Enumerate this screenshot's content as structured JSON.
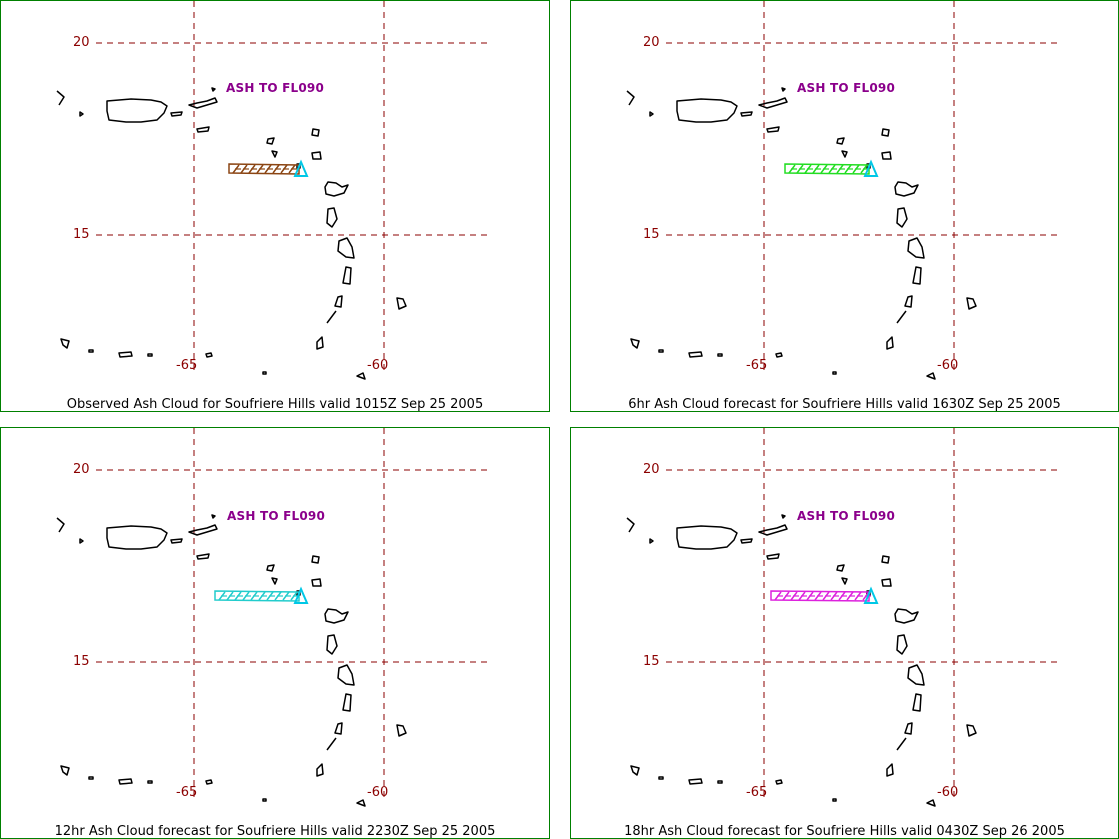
{
  "colors": {
    "border": "#008000",
    "grid": "#8b0000",
    "coast": "#000000",
    "ash_label": "#8b008b",
    "vent": "#00c8e6"
  },
  "icons": {
    "vent": "triangle-icon",
    "ash_cloud": "hatched-polygon"
  },
  "panels": [
    {
      "lat_labels": [
        "20",
        "15"
      ],
      "lon_labels": [
        "-65",
        "-60"
      ],
      "ash_label": "ASH TO FL090",
      "cloud_color": "#8b4513",
      "caption": "Observed Ash Cloud for Soufriere  Hills valid 1015Z Sep 25 2005"
    },
    {
      "lat_labels": [
        "20",
        "15"
      ],
      "lon_labels": [
        "-65",
        "-60"
      ],
      "ash_label": "ASH TO FL090",
      "cloud_color": "#22dd22",
      "caption": "6hr Ash Cloud forecast for Soufriere  Hills valid 1630Z Sep 25 2005"
    },
    {
      "lat_labels": [
        "20",
        "15"
      ],
      "lon_labels": [
        "-65",
        "-60"
      ],
      "ash_label": "ASH TO FL090",
      "cloud_color": "#22cccc",
      "caption": "12hr Ash Cloud forecast for Soufriere  Hills valid 2230Z Sep 25 2005"
    },
    {
      "lat_labels": [
        "20",
        "15"
      ],
      "lon_labels": [
        "-65",
        "-60"
      ],
      "ash_label": "ASH TO FL090",
      "cloud_color": "#dd22dd",
      "caption": "18hr Ash Cloud forecast for Soufriere  Hills valid 0430Z Sep 26 2005"
    }
  ]
}
